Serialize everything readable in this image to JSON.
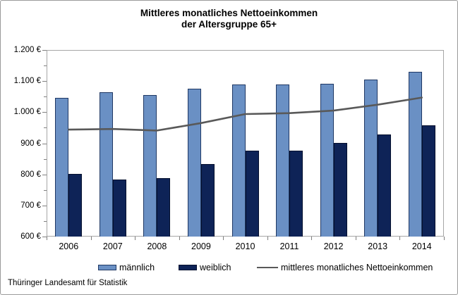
{
  "title": {
    "line1": "Mittleres monatliches Nettoeinkommen",
    "line2": "der Altersgruppe 65+"
  },
  "footer": "Thüringer Landesamt für Statistik",
  "colors": {
    "bar_maennlich": "#6a90c4",
    "bar_maennlich_border": "#1f3864",
    "bar_weiblich": "#0e2357",
    "bar_weiblich_border": "#05102e",
    "line": "#595959",
    "plot_border": "#a6a6a6",
    "tick": "#7f7f7f"
  },
  "chart_data": {
    "type": "bar",
    "title": "Mittleres monatliches Nettoeinkommen der Altersgruppe 65+",
    "categories": [
      "2006",
      "2007",
      "2008",
      "2009",
      "2010",
      "2011",
      "2012",
      "2013",
      "2014"
    ],
    "series": [
      {
        "name": "männlich",
        "type": "bar",
        "color": "#6a90c4",
        "values": [
          1046,
          1064,
          1055,
          1076,
          1089,
          1089,
          1092,
          1105,
          1129
        ]
      },
      {
        "name": "weiblich",
        "type": "bar",
        "color": "#0e2357",
        "values": [
          802,
          784,
          789,
          833,
          877,
          877,
          902,
          929,
          957
        ]
      },
      {
        "name": "mittleres monatliches Nettoeinkommen",
        "type": "line",
        "color": "#595959",
        "values": [
          944,
          946,
          941,
          965,
          994,
          997,
          1005,
          1024,
          1047
        ]
      }
    ],
    "ylim": [
      600,
      1200
    ],
    "ytick_step": 100,
    "ytick_minor_step": 50,
    "ytick_labels": [
      "600 €",
      "700 €",
      "800 €",
      "900 €",
      "1.000 €",
      "1.100 €",
      "1.200 €"
    ],
    "ylabel": "",
    "xlabel": "",
    "grid": false,
    "legend_position": "bottom"
  }
}
